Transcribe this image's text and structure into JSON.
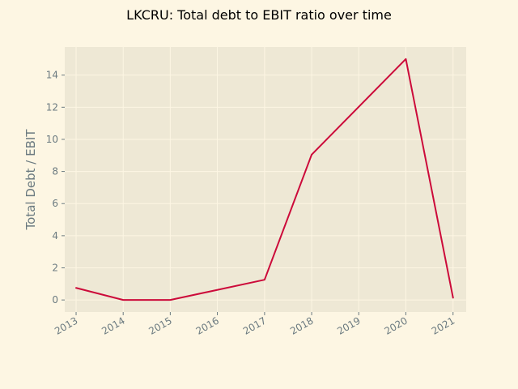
{
  "colors": {
    "figure_background": "#fdf6e3",
    "plot_background": "#eee8d5",
    "grid": "#fdf6e3",
    "line": "#cc0a3a",
    "tick_and_label_text": "#6b7a80",
    "title_text": "#000000"
  },
  "chart_data": {
    "type": "line",
    "title": "LKCRU: Total debt to EBIT ratio over time",
    "xlabel": "",
    "ylabel": "Total Debt / EBIT",
    "x_ticks": [
      "2013",
      "2014",
      "2015",
      "2016",
      "2017",
      "2018",
      "2019",
      "2020",
      "2021"
    ],
    "xlim": [
      "2012-10-05",
      "2021-04-13"
    ],
    "y_ticks": [
      0,
      2,
      4,
      6,
      8,
      10,
      12,
      14
    ],
    "ylim": [
      -0.75,
      15.75
    ],
    "grid": true,
    "series": [
      {
        "x": [
          "2013-01-01",
          "2014-01-01",
          "2015-01-01",
          "2017-01-01",
          "2018-01-01",
          "2020-01-01",
          "2021-01-01"
        ],
        "y": [
          0.75,
          0.0,
          0.0,
          1.26,
          9.05,
          15.0,
          0.14
        ]
      }
    ]
  }
}
